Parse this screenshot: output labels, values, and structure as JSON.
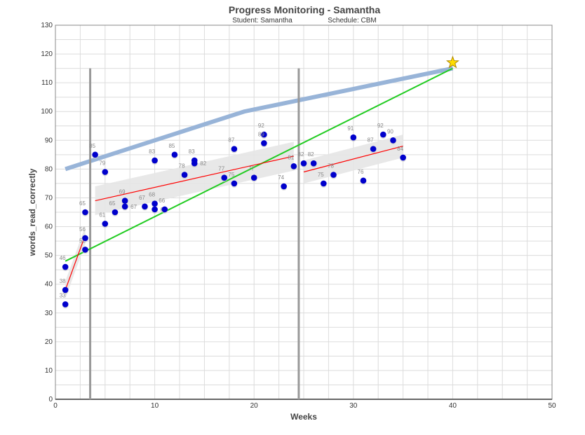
{
  "chart_data": {
    "type": "scatter",
    "title": "Progress Monitoring - Samantha",
    "subtitle_student": "Student: Samantha",
    "subtitle_schedule": "Schedule: CBM",
    "xlabel": "Weeks",
    "ylabel": "words_read_correctly",
    "xlim": [
      0,
      50
    ],
    "ylim": [
      0,
      130
    ],
    "xticks": [
      0,
      10,
      20,
      30,
      40,
      50
    ],
    "yticks": [
      0,
      10,
      20,
      30,
      40,
      50,
      60,
      70,
      80,
      90,
      100,
      110,
      120,
      130
    ],
    "grid": true,
    "points": [
      [
        1,
        33
      ],
      [
        1,
        38
      ],
      [
        1,
        46
      ],
      [
        3,
        52
      ],
      [
        3,
        56
      ],
      [
        3,
        65
      ],
      [
        4,
        85
      ],
      [
        5,
        79
      ],
      [
        5,
        61
      ],
      [
        6,
        65
      ],
      [
        7,
        69
      ],
      [
        7,
        67
      ],
      [
        9,
        67
      ],
      [
        10,
        68
      ],
      [
        10,
        66
      ],
      [
        10,
        83
      ],
      [
        11,
        66
      ],
      [
        12,
        85
      ],
      [
        13,
        78
      ],
      [
        14,
        83
      ],
      [
        14,
        82
      ],
      [
        17,
        77
      ],
      [
        18,
        75
      ],
      [
        18,
        87
      ],
      [
        20,
        77
      ],
      [
        21,
        92
      ],
      [
        21,
        89
      ],
      [
        23,
        74
      ],
      [
        24,
        81
      ],
      [
        25,
        82
      ],
      [
        26,
        82
      ],
      [
        27,
        75
      ],
      [
        28,
        78
      ],
      [
        30,
        91
      ],
      [
        31,
        76
      ],
      [
        32,
        87
      ],
      [
        33,
        92
      ],
      [
        34,
        90
      ],
      [
        35,
        84
      ]
    ],
    "goal_line": [
      [
        1,
        80
      ],
      [
        19,
        100
      ],
      [
        40,
        115
      ]
    ],
    "aim_line": [
      [
        1,
        48
      ],
      [
        40,
        115
      ]
    ],
    "goal_star": [
      40,
      117
    ],
    "phase_lines": [
      3.5,
      24.5
    ],
    "phase_line_top": 115,
    "trend_lines": [
      {
        "x": [
          1,
          3
        ],
        "y": [
          38,
          57
        ],
        "band": 3
      },
      {
        "x": [
          4,
          24
        ],
        "y": [
          69,
          84.5
        ],
        "band": 5
      },
      {
        "x": [
          25,
          35
        ],
        "y": [
          79,
          88
        ],
        "band": 4
      }
    ],
    "colors": {
      "point": "#0000cc",
      "goal": "#98b4d8",
      "aim": "#22cc22",
      "trend": "#ff0000",
      "phase": "#999999",
      "band": "#e6e6e6",
      "star": "#ffdd00"
    }
  }
}
